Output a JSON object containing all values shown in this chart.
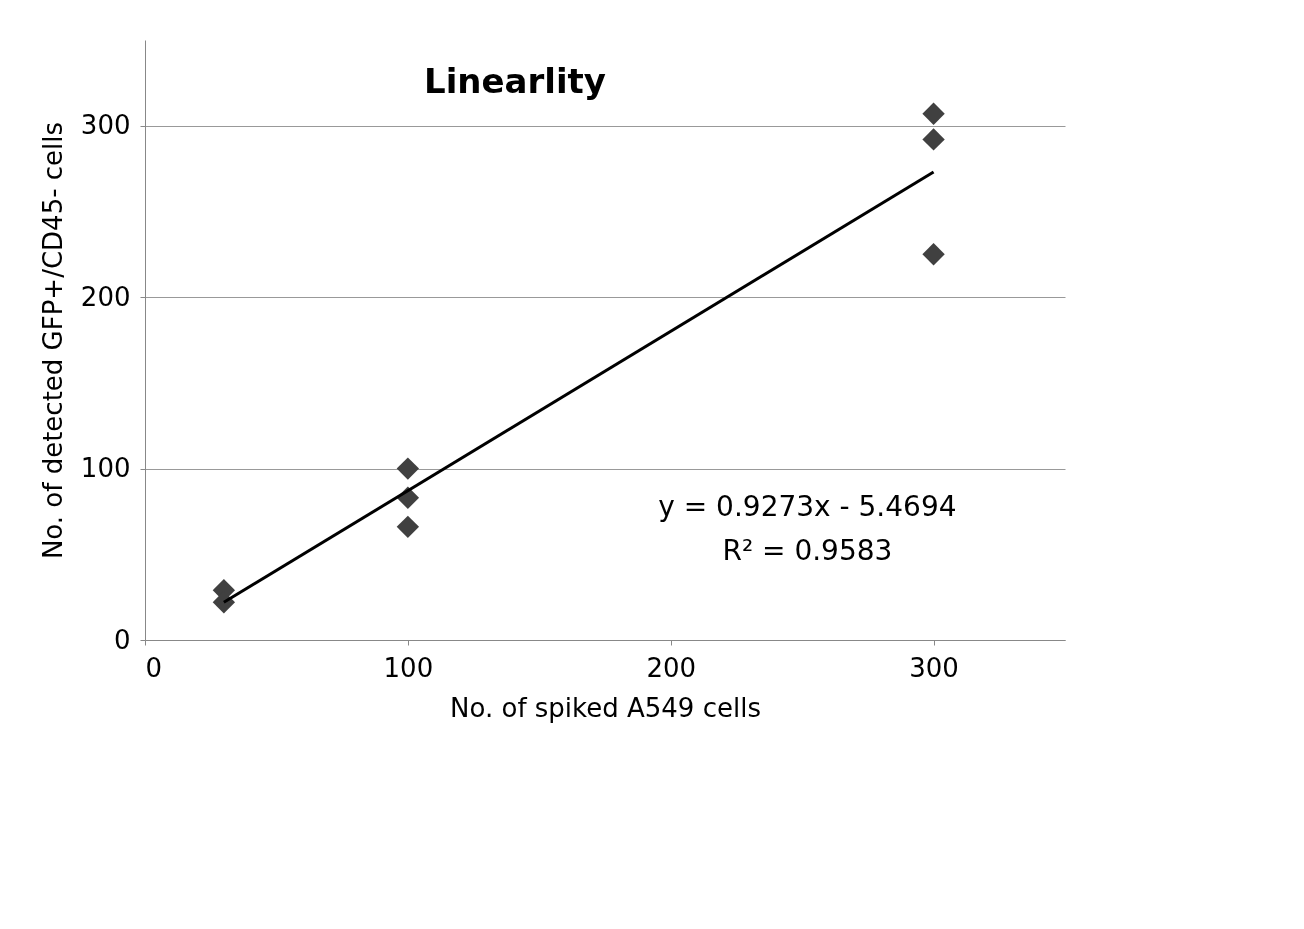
{
  "chart_data": {
    "type": "scatter",
    "title": "Linearlity",
    "xlabel": "No. of spiked A549 cells",
    "ylabel": "No. of detected GFP+/CD45- cells",
    "xlim": [
      0,
      350
    ],
    "ylim": [
      0,
      350
    ],
    "xticks": [
      0,
      100,
      200,
      300
    ],
    "yticks": [
      0,
      100,
      200,
      300
    ],
    "grid": "y",
    "series": [
      {
        "marker": "diamond",
        "color": "#404040",
        "x": [
          30,
          30,
          100,
          100,
          100,
          300,
          300,
          300
        ],
        "values": [
          29,
          22,
          100,
          83,
          66,
          307,
          292,
          225
        ]
      },
      {
        "type": "line",
        "marker": "none",
        "color": "#000000",
        "x": [
          30,
          300
        ],
        "values": [
          22,
          273
        ]
      }
    ],
    "annotations": [
      "y = 0.9273x - 5.4694",
      "R² = 0.9583"
    ]
  }
}
